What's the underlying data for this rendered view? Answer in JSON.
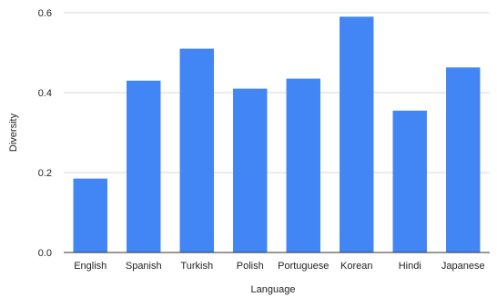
{
  "chart_data": {
    "type": "bar",
    "title": "",
    "xlabel": "Language",
    "ylabel": "Diversity",
    "categories": [
      "English",
      "Spanish",
      "Turkish",
      "Polish",
      "Portuguese",
      "Korean",
      "Hindi",
      "Japanese"
    ],
    "values": [
      0.185,
      0.43,
      0.51,
      0.41,
      0.435,
      0.59,
      0.355,
      0.463
    ],
    "ylim": [
      0,
      0.6
    ],
    "yticks": [
      0.0,
      0.2,
      0.4,
      0.6
    ],
    "ytick_labels": [
      "0.0",
      "0.2",
      "0.4",
      "0.6"
    ],
    "grid": true,
    "legend": "none",
    "bar_color": "#4285f4"
  }
}
